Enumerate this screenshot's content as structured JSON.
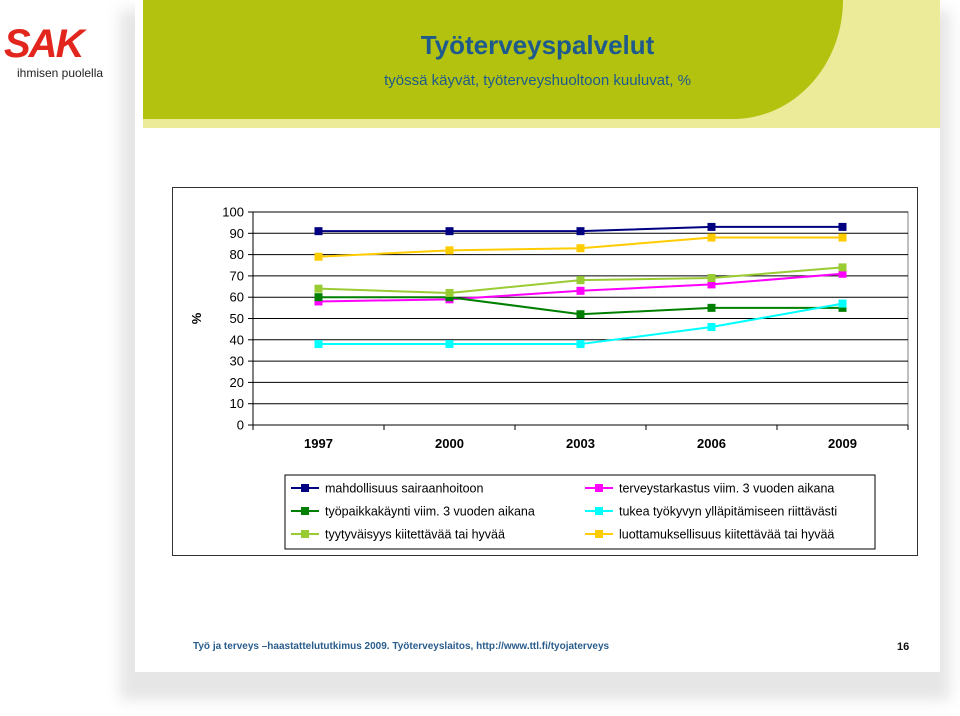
{
  "brand": {
    "logo_text": "SAK",
    "tagline": "ihmisen puolella"
  },
  "slide": {
    "title": "Työterveyspalvelut",
    "subtitle": "työssä käyvät, työterveyshuoltoon kuuluvat, %",
    "source": "Työ ja terveys –haastattelututkimus 2009. Työterveyslaitos, http://www.ttl.fi/tyojaterveys",
    "page_number": "16"
  },
  "chart_data": {
    "type": "line",
    "title": "",
    "xlabel": "",
    "ylabel": "%",
    "ylim": [
      0,
      100
    ],
    "yticks": [
      0,
      10,
      20,
      30,
      40,
      50,
      60,
      70,
      80,
      90,
      100
    ],
    "categories": [
      "1997",
      "2000",
      "2003",
      "2006",
      "2009"
    ],
    "grid": true,
    "legend_position": "bottom",
    "series": [
      {
        "name": "mahdollisuus sairaanhoitoon",
        "color": "#000080",
        "values": [
          91,
          91,
          91,
          93,
          93
        ]
      },
      {
        "name": "terveystarkastus viim. 3 vuoden aikana",
        "color": "#ff00ff",
        "values": [
          58,
          59,
          63,
          66,
          71
        ]
      },
      {
        "name": "työpaikkakäynti viim. 3 vuoden aikana",
        "color": "#008000",
        "values": [
          60,
          60,
          52,
          55,
          55
        ]
      },
      {
        "name": "tukea työkyvyn ylläpitämiseen riittävästi",
        "color": "#00ffff",
        "values": [
          38,
          38,
          38,
          46,
          57
        ]
      },
      {
        "name": "tyytyväisyys kiitettävää tai hyvää",
        "color": "#99cc33",
        "values": [
          64,
          62,
          68,
          69,
          74
        ]
      },
      {
        "name": "luottamuksellisuus kiitettävää tai hyvää",
        "color": "#ffcc00",
        "values": [
          79,
          82,
          83,
          88,
          88
        ]
      }
    ]
  }
}
